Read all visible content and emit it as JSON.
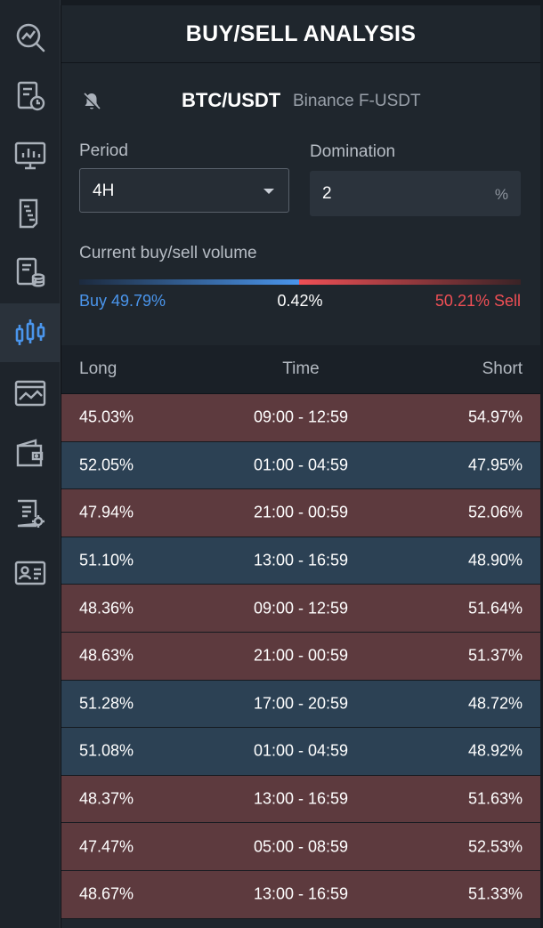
{
  "colors": {
    "buy": "#4a95ec",
    "sell": "#ef4f55",
    "long_row": "#2c4154",
    "short_row": "#5d3a3e"
  },
  "sidebar": {
    "items": [
      {
        "icon": "chart-search-icon",
        "active": false
      },
      {
        "icon": "report-clock-icon",
        "active": false
      },
      {
        "icon": "monitor-chart-icon",
        "active": false
      },
      {
        "icon": "order-book-icon",
        "active": false
      },
      {
        "icon": "document-database-icon",
        "active": false
      },
      {
        "icon": "candlestick-icon",
        "active": true
      },
      {
        "icon": "image-chart-icon",
        "active": false
      },
      {
        "icon": "wallet-icon",
        "active": false
      },
      {
        "icon": "document-settings-icon",
        "active": false
      },
      {
        "icon": "id-card-icon",
        "active": false
      }
    ]
  },
  "header": {
    "title": "BUY/SELL ANALYSIS"
  },
  "market": {
    "bell_icon": "bell-off-icon",
    "pair": "BTC/USDT",
    "exchange": "Binance F-USDT"
  },
  "controls": {
    "period_label": "Period",
    "period_value": "4H",
    "domination_label": "Domination",
    "domination_value": "2",
    "domination_unit": "%"
  },
  "volume": {
    "label": "Current buy/sell volume",
    "buy_text": "Buy 49.79%",
    "diff_text": "0.42%",
    "sell_text": "50.21% Sell",
    "buy_percent": 49.79,
    "sell_percent": 50.21
  },
  "table": {
    "headers": {
      "long": "Long",
      "time": "Time",
      "short": "Short"
    },
    "rows": [
      {
        "long": "45.03%",
        "time": "09:00 - 12:59",
        "short": "54.97%"
      },
      {
        "long": "52.05%",
        "time": "01:00 - 04:59",
        "short": "47.95%"
      },
      {
        "long": "47.94%",
        "time": "21:00 - 00:59",
        "short": "52.06%"
      },
      {
        "long": "51.10%",
        "time": "13:00 - 16:59",
        "short": "48.90%"
      },
      {
        "long": "48.36%",
        "time": "09:00 - 12:59",
        "short": "51.64%"
      },
      {
        "long": "48.63%",
        "time": "21:00 - 00:59",
        "short": "51.37%"
      },
      {
        "long": "51.28%",
        "time": "17:00 - 20:59",
        "short": "48.72%"
      },
      {
        "long": "51.08%",
        "time": "01:00 - 04:59",
        "short": "48.92%"
      },
      {
        "long": "48.37%",
        "time": "13:00 - 16:59",
        "short": "51.63%"
      },
      {
        "long": "47.47%",
        "time": "05:00 - 08:59",
        "short": "52.53%"
      },
      {
        "long": "48.67%",
        "time": "13:00 - 16:59",
        "short": "51.33%"
      }
    ]
  }
}
